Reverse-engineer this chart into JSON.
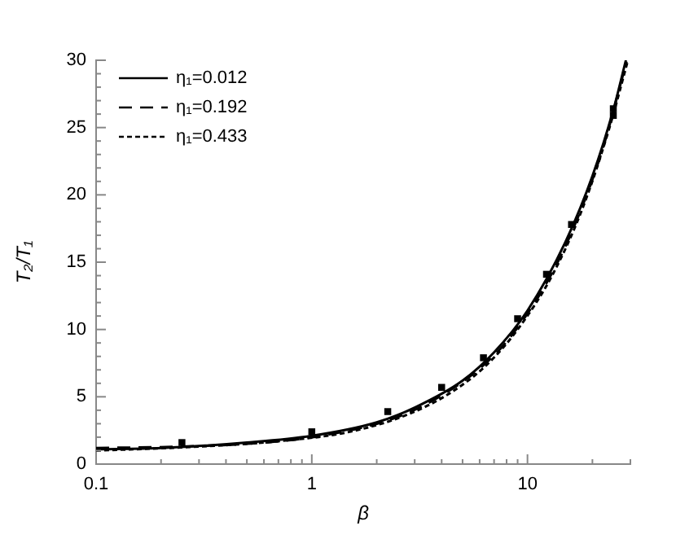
{
  "chart_data": {
    "type": "line",
    "xlabel": "β",
    "ylabel": "T₂/T₁",
    "log": "x",
    "xlim": [
      0.1,
      30
    ],
    "xticks": [
      0.1,
      {
        "value": 0.2,
        "label": null
      },
      {
        "value": 0.3,
        "label": null
      },
      {
        "value": 0.4,
        "label": null
      },
      {
        "value": 0.5,
        "label": null
      },
      {
        "value": 0.6,
        "label": null
      },
      {
        "value": 0.7,
        "label": null
      },
      {
        "value": 0.8,
        "label": null
      },
      {
        "value": 0.9,
        "label": null
      },
      1,
      {
        "value": 2,
        "label": null
      },
      {
        "value": 3,
        "label": null
      },
      {
        "value": 4,
        "label": null
      },
      {
        "value": 5,
        "label": null
      },
      {
        "value": 6,
        "label": null
      },
      {
        "value": 7,
        "label": null
      },
      {
        "value": 8,
        "label": null
      },
      {
        "value": 9,
        "label": null
      },
      10,
      {
        "value": 20,
        "label": null
      },
      {
        "value": 30,
        "label": null
      }
    ],
    "ylim": [
      0,
      30
    ],
    "yticks": [
      0,
      {
        "value": 1,
        "label": null
      },
      {
        "value": 2,
        "label": null
      },
      {
        "value": 3,
        "label": null
      },
      {
        "value": 4,
        "label": null
      },
      5,
      {
        "value": 6,
        "label": null
      },
      {
        "value": 7,
        "label": null
      },
      {
        "value": 8,
        "label": null
      },
      {
        "value": 9,
        "label": null
      },
      10,
      {
        "value": 11,
        "label": null
      },
      {
        "value": 12,
        "label": null
      },
      {
        "value": 13,
        "label": null
      },
      {
        "value": 14,
        "label": null
      },
      15,
      {
        "value": 16,
        "label": null
      },
      {
        "value": 17,
        "label": null
      },
      {
        "value": 18,
        "label": null
      },
      {
        "value": 19,
        "label": null
      },
      20,
      {
        "value": 21,
        "label": null
      },
      {
        "value": 22,
        "label": null
      },
      {
        "value": 23,
        "label": null
      },
      {
        "value": 24,
        "label": null
      },
      25,
      {
        "value": 26,
        "label": null
      },
      {
        "value": 27,
        "label": null
      },
      {
        "value": 28,
        "label": null
      },
      {
        "value": 29,
        "label": null
      },
      30
    ],
    "grid": false,
    "legend": "top left",
    "series": [
      {
        "name": "η₁=0.012",
        "color": "#000000",
        "line_style": "solid",
        "marker": "none",
        "x": [
          0.1,
          0.2,
          0.5,
          1,
          2,
          3,
          5,
          7,
          10,
          15,
          20,
          25,
          28.6
        ],
        "values": [
          1.1,
          1.2,
          1.6,
          2.1,
          3.1,
          4.2,
          6.2,
          8.3,
          11.4,
          16.5,
          21.4,
          26.3,
          30
        ]
      },
      {
        "name": "η₁=0.192",
        "color": "#000000",
        "line_style": "dashed",
        "marker": "none",
        "x": [
          0.1,
          0.25,
          0.6,
          1.2,
          2.5,
          4,
          6,
          8,
          12,
          16,
          22,
          28.8
        ],
        "values": [
          1.2,
          1.3,
          1.6,
          2.2,
          3.5,
          5.1,
          7.1,
          9.1,
          13.2,
          17.2,
          23.1,
          29.9
        ]
      },
      {
        "name": "η₁=0.433",
        "color": "#000000",
        "line_style": "dotted",
        "marker": "none",
        "x": [
          0.1,
          0.3,
          0.7,
          1.5,
          2.8,
          4.5,
          6.5,
          9,
          13,
          18,
          24,
          29
        ],
        "values": [
          1.0,
          1.3,
          1.7,
          2.4,
          3.7,
          5.4,
          7.4,
          10.0,
          14.0,
          19.0,
          25.0,
          29.8
        ]
      },
      {
        "type": "scatter",
        "color": "#000000",
        "marker": "square",
        "x": [
          0.25,
          1,
          2.25,
          4,
          6.25,
          9,
          12.25,
          16,
          25,
          25
        ],
        "values": [
          1.6,
          2.4,
          3.9,
          5.7,
          7.9,
          10.8,
          14.1,
          17.8,
          26.4,
          25.9
        ]
      }
    ]
  }
}
